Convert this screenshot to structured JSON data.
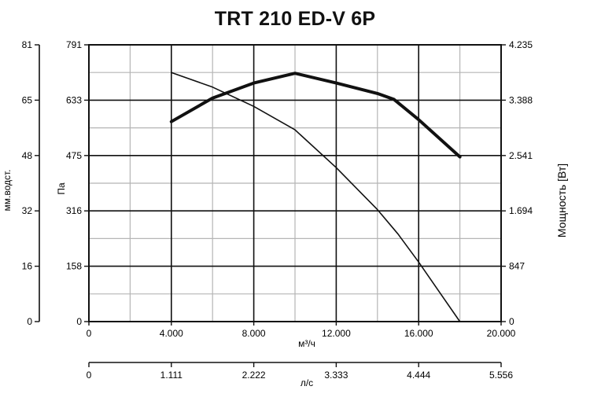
{
  "chart_data": {
    "type": "line",
    "title": "TRT 210 ED-V 6P",
    "xlabel": "м³/ч",
    "x2label": "л/с",
    "ylabel_left_inner": "Па",
    "ylabel_left_outer": "мм.водст.",
    "ylabel_right": "Мощность [Вт]",
    "xlim": [
      0,
      20000
    ],
    "ylim_pa": [
      0,
      791
    ],
    "ylim_power": [
      0,
      4235
    ],
    "grid": true,
    "x_ticks": [
      "0",
      "4.000",
      "8.000",
      "12.000",
      "16.000",
      "20.000"
    ],
    "x2_ticks": [
      "0",
      "1.111",
      "2.222",
      "3.333",
      "4.444",
      "5.556"
    ],
    "y_pa_ticks": [
      "0",
      "158",
      "316",
      "475",
      "633",
      "791"
    ],
    "y_mm_ticks": [
      "0",
      "16",
      "32",
      "48",
      "65",
      "81"
    ],
    "y_power_ticks": [
      "0",
      "847",
      "1.694",
      "2.541",
      "3.388",
      "4.235"
    ],
    "series": [
      {
        "role": "pressure",
        "axis": "Па",
        "width": "thin",
        "x": [
          4000,
          6000,
          8000,
          10000,
          12000,
          14000,
          15000,
          16000,
          17000,
          18000
        ],
        "y": [
          712,
          670,
          615,
          548,
          440,
          320,
          250,
          170,
          85,
          0
        ]
      },
      {
        "role": "power",
        "axis": "Мощность [Вт]",
        "width": "thick",
        "x": [
          4000,
          6000,
          8000,
          10000,
          12000,
          14000,
          14800,
          16000,
          18000
        ],
        "y": [
          3060,
          3420,
          3650,
          3800,
          3650,
          3490,
          3400,
          3090,
          2520
        ]
      }
    ]
  }
}
